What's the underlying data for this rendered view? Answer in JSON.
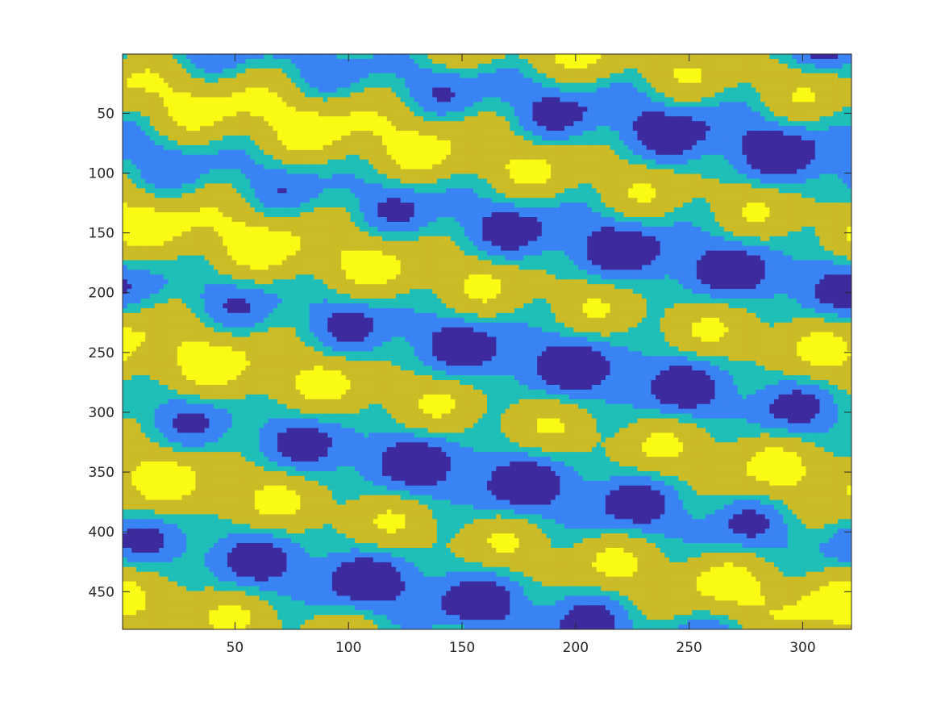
{
  "chart_data": {
    "type": "heatmap",
    "title": "",
    "xlabel": "",
    "ylabel": "",
    "xlim": [
      1,
      321
    ],
    "ylim": [
      1,
      481
    ],
    "y_reversed": true,
    "grid": false,
    "legend": "none",
    "colormap": "parula",
    "num_levels": 5,
    "level_colors": [
      "#3d2a9f",
      "#3a83f4",
      "#1fbfb8",
      "#cbbb26",
      "#f9fb14"
    ],
    "x_ticks": [
      50,
      100,
      150,
      200,
      250,
      300
    ],
    "x_tick_labels": [
      "50",
      "100",
      "150",
      "200",
      "250",
      "300"
    ],
    "y_ticks": [
      50,
      100,
      150,
      200,
      250,
      300,
      350,
      400,
      450
    ],
    "y_tick_labels": [
      "50",
      "100",
      "150",
      "200",
      "250",
      "300",
      "350",
      "400",
      "450"
    ]
  }
}
